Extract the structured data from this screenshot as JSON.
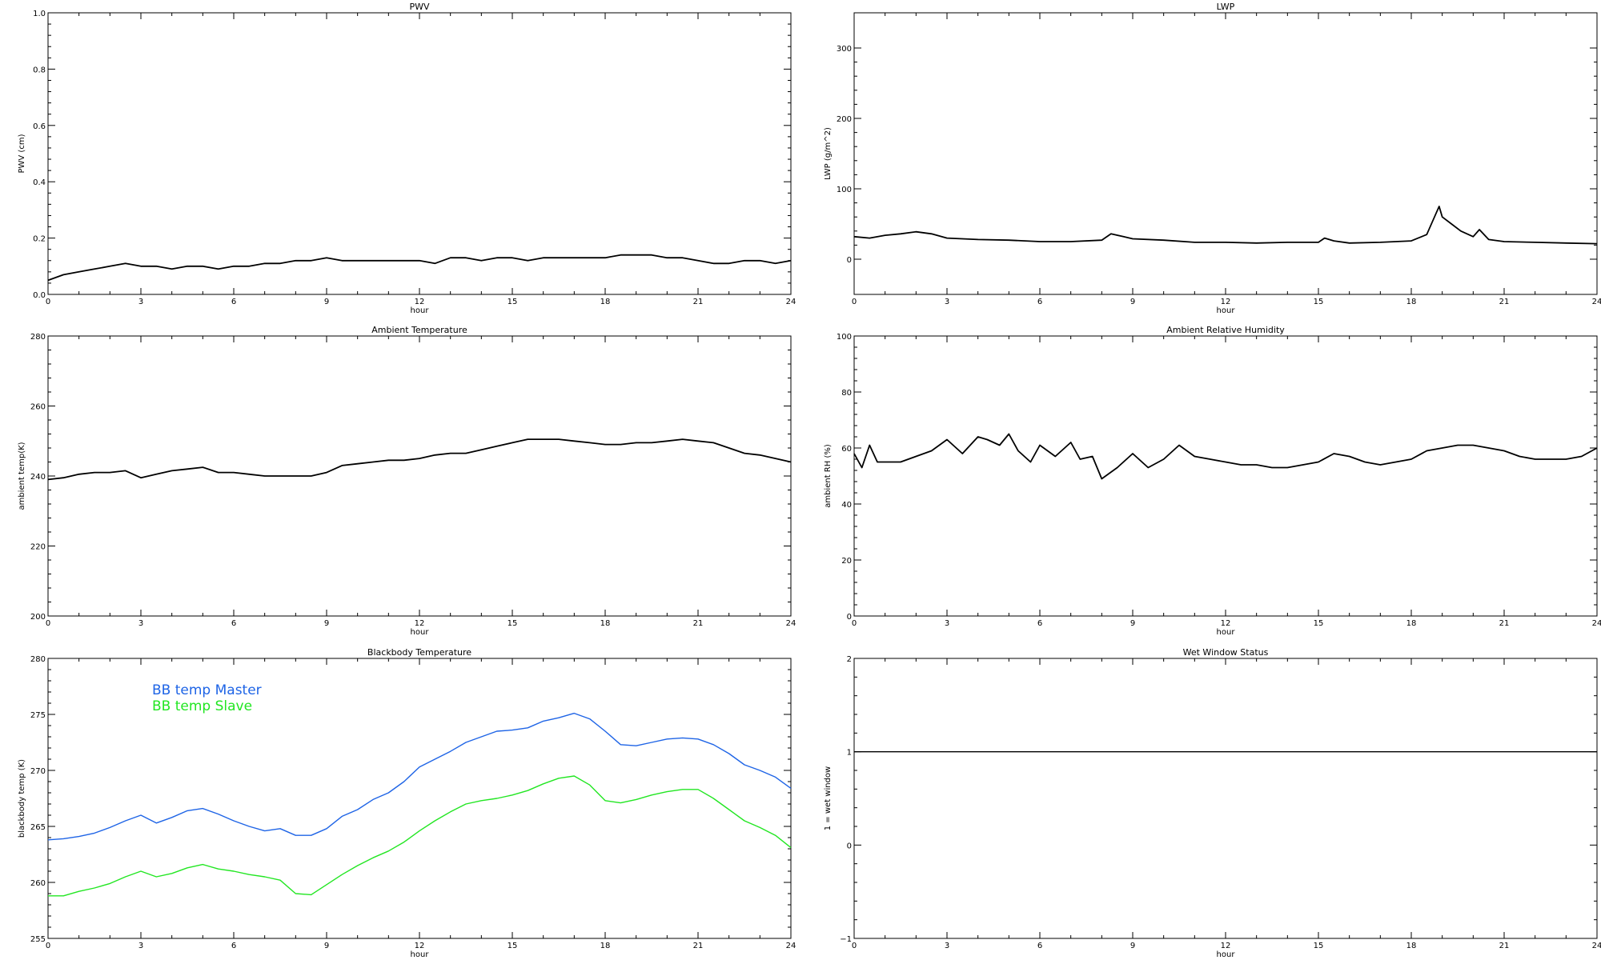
{
  "chart_data": [
    {
      "id": "pwv",
      "type": "line",
      "title": "PWV",
      "xlabel": "hour",
      "ylabel": "PWV (cm)",
      "xlim": [
        0,
        24
      ],
      "ylim": [
        0.0,
        1.0
      ],
      "xticks": [
        "0",
        "3",
        "6",
        "9",
        "12",
        "15",
        "18",
        "21",
        "24"
      ],
      "yticks": [
        "0.0",
        "0.2",
        "0.4",
        "0.6",
        "0.8",
        "1.0"
      ],
      "series": [
        {
          "color": "#000000",
          "x": [
            0,
            0.5,
            1,
            1.5,
            2,
            2.5,
            3,
            3.5,
            4,
            4.5,
            5,
            5.5,
            6,
            6.5,
            7,
            7.5,
            8,
            8.5,
            9,
            9.5,
            10,
            10.5,
            11,
            11.5,
            12,
            12.5,
            13,
            13.5,
            14,
            14.5,
            15,
            15.5,
            16,
            16.5,
            17,
            17.5,
            18,
            18.5,
            19,
            19.5,
            20,
            20.5,
            21,
            21.5,
            22,
            22.5,
            23,
            23.5,
            24
          ],
          "values": [
            0.05,
            0.07,
            0.08,
            0.09,
            0.1,
            0.11,
            0.1,
            0.1,
            0.09,
            0.1,
            0.1,
            0.09,
            0.1,
            0.1,
            0.11,
            0.11,
            0.12,
            0.12,
            0.13,
            0.12,
            0.12,
            0.12,
            0.12,
            0.12,
            0.12,
            0.11,
            0.13,
            0.13,
            0.12,
            0.13,
            0.13,
            0.12,
            0.13,
            0.13,
            0.13,
            0.13,
            0.13,
            0.14,
            0.14,
            0.14,
            0.13,
            0.13,
            0.12,
            0.11,
            0.11,
            0.12,
            0.12,
            0.11,
            0.12
          ]
        }
      ]
    },
    {
      "id": "lwp",
      "type": "line",
      "title": "LWP",
      "xlabel": "hour",
      "ylabel": "LWP (g/m^2)",
      "xlim": [
        0,
        24
      ],
      "ylim": [
        -50,
        350
      ],
      "xticks": [
        "0",
        "3",
        "6",
        "9",
        "12",
        "15",
        "18",
        "21",
        "24"
      ],
      "yticks": [
        "0",
        "100",
        "200",
        "300"
      ],
      "yticks_at": [
        0,
        100,
        200,
        300
      ],
      "series": [
        {
          "color": "#000000",
          "x": [
            0,
            0.5,
            1,
            1.5,
            2,
            2.5,
            3,
            4,
            5,
            6,
            7,
            8,
            8.3,
            8.7,
            9,
            10,
            11,
            12,
            13,
            14,
            15,
            15.2,
            15.5,
            16,
            17,
            18,
            18.5,
            18.8,
            18.9,
            19,
            19.3,
            19.6,
            20,
            20.2,
            20.5,
            21,
            22,
            23,
            24
          ],
          "values": [
            32,
            30,
            34,
            36,
            39,
            36,
            30,
            28,
            27,
            25,
            25,
            27,
            36,
            32,
            29,
            27,
            24,
            24,
            23,
            24,
            24,
            30,
            26,
            23,
            24,
            26,
            35,
            65,
            75,
            60,
            50,
            40,
            32,
            42,
            28,
            25,
            24,
            23,
            22
          ]
        }
      ]
    },
    {
      "id": "ambient-temp",
      "type": "line",
      "title": "Ambient Temperature",
      "xlabel": "hour",
      "ylabel": "ambient temp(K)",
      "xlim": [
        0,
        24
      ],
      "ylim": [
        200,
        280
      ],
      "xticks": [
        "0",
        "3",
        "6",
        "9",
        "12",
        "15",
        "18",
        "21",
        "24"
      ],
      "yticks": [
        "200",
        "220",
        "240",
        "260",
        "280"
      ],
      "series": [
        {
          "color": "#000000",
          "x": [
            0,
            0.5,
            1,
            1.5,
            2,
            2.5,
            3,
            3.5,
            4,
            4.5,
            5,
            5.5,
            6,
            6.5,
            7,
            7.5,
            8,
            8.5,
            9,
            9.5,
            10,
            10.5,
            11,
            11.5,
            12,
            12.5,
            13,
            13.5,
            14,
            14.5,
            15,
            15.5,
            16,
            16.5,
            17,
            17.5,
            18,
            18.5,
            19,
            19.5,
            20,
            20.5,
            21,
            21.5,
            22,
            22.5,
            23,
            23.5,
            24
          ],
          "values": [
            239,
            239.5,
            240.5,
            241,
            241,
            241.5,
            239.5,
            240.5,
            241.5,
            242,
            242.5,
            241,
            241,
            240.5,
            240,
            240,
            240,
            240,
            241,
            243,
            243.5,
            244,
            244.5,
            244.5,
            245,
            246,
            246.5,
            246.5,
            247.5,
            248.5,
            249.5,
            250.5,
            250.5,
            250.5,
            250,
            249.5,
            249,
            249,
            249.5,
            249.5,
            250,
            250.5,
            250,
            249.5,
            248,
            246.5,
            246,
            245,
            244
          ]
        }
      ]
    },
    {
      "id": "ambient-rh",
      "type": "line",
      "title": "Ambient Relative Humidity",
      "xlabel": "hour",
      "ylabel": "ambient RH (%)",
      "xlim": [
        0,
        24
      ],
      "ylim": [
        0,
        100
      ],
      "xticks": [
        "0",
        "3",
        "6",
        "9",
        "12",
        "15",
        "18",
        "21",
        "24"
      ],
      "yticks": [
        "0",
        "20",
        "40",
        "60",
        "80",
        "100"
      ],
      "series": [
        {
          "color": "#000000",
          "x": [
            0,
            0.25,
            0.5,
            0.75,
            1,
            1.5,
            2,
            2.5,
            3,
            3.5,
            4,
            4.3,
            4.7,
            5,
            5.3,
            5.7,
            6,
            6.5,
            7,
            7.3,
            7.7,
            8,
            8.5,
            9,
            9.5,
            10,
            10.5,
            11,
            11.5,
            12,
            12.5,
            13,
            13.5,
            14,
            14.5,
            15,
            15.5,
            16,
            16.5,
            17,
            17.5,
            18,
            18.5,
            19,
            19.5,
            20,
            20.5,
            21,
            21.5,
            22,
            22.5,
            23,
            23.5,
            24
          ],
          "values": [
            58,
            53,
            61,
            55,
            55,
            55,
            57,
            59,
            63,
            58,
            64,
            63,
            61,
            65,
            59,
            55,
            61,
            57,
            62,
            56,
            57,
            49,
            53,
            58,
            53,
            56,
            61,
            57,
            56,
            55,
            54,
            54,
            53,
            53,
            54,
            55,
            58,
            57,
            55,
            54,
            55,
            56,
            59,
            60,
            61,
            61,
            60,
            59,
            57,
            56,
            56,
            56,
            57,
            60
          ]
        }
      ]
    },
    {
      "id": "blackbody-temp",
      "type": "line",
      "title": "Blackbody Temperature",
      "xlabel": "hour",
      "ylabel": "blackbody temp (K)",
      "xlim": [
        0,
        24
      ],
      "ylim": [
        255,
        280
      ],
      "legend_position": "top-left",
      "xticks": [
        "0",
        "3",
        "6",
        "9",
        "12",
        "15",
        "18",
        "21",
        "24"
      ],
      "yticks": [
        "255",
        "260",
        "265",
        "270",
        "275",
        "280"
      ],
      "series": [
        {
          "name": "BB temp Master",
          "color": "#1e64e6",
          "x": [
            0,
            0.5,
            1,
            1.5,
            2,
            2.5,
            3,
            3.5,
            4,
            4.5,
            5,
            5.5,
            6,
            6.5,
            7,
            7.5,
            8,
            8.5,
            9,
            9.5,
            10,
            10.5,
            11,
            11.5,
            12,
            12.5,
            13,
            13.5,
            14,
            14.5,
            15,
            15.5,
            16,
            16.5,
            17,
            17.5,
            18,
            18.5,
            19,
            19.5,
            20,
            20.5,
            21,
            21.5,
            22,
            22.5,
            23,
            23.5,
            24
          ],
          "values": [
            263.8,
            263.9,
            264.1,
            264.4,
            264.9,
            265.5,
            266.0,
            265.3,
            265.8,
            266.4,
            266.6,
            266.1,
            265.5,
            265.0,
            264.6,
            264.8,
            264.2,
            264.2,
            264.8,
            265.9,
            266.5,
            267.4,
            268.0,
            269.0,
            270.3,
            271.0,
            271.7,
            272.5,
            273.0,
            273.5,
            273.6,
            273.8,
            274.4,
            274.7,
            275.1,
            274.6,
            273.5,
            272.3,
            272.2,
            272.5,
            272.8,
            272.9,
            272.8,
            272.3,
            271.5,
            270.5,
            270.0,
            269.4,
            268.4
          ]
        },
        {
          "name": "BB temp Slave",
          "color": "#22e622",
          "x": [
            0,
            0.5,
            1,
            1.5,
            2,
            2.5,
            3,
            3.5,
            4,
            4.5,
            5,
            5.5,
            6,
            6.5,
            7,
            7.5,
            8,
            8.5,
            9,
            9.5,
            10,
            10.5,
            11,
            11.5,
            12,
            12.5,
            13,
            13.5,
            14,
            14.5,
            15,
            15.5,
            16,
            16.5,
            17,
            17.5,
            18,
            18.5,
            19,
            19.5,
            20,
            20.5,
            21,
            21.5,
            22,
            22.5,
            23,
            23.5,
            24
          ],
          "values": [
            258.8,
            258.8,
            259.2,
            259.5,
            259.9,
            260.5,
            261.0,
            260.5,
            260.8,
            261.3,
            261.6,
            261.2,
            261.0,
            260.7,
            260.5,
            260.2,
            259.0,
            258.9,
            259.8,
            260.7,
            261.5,
            262.2,
            262.8,
            263.6,
            264.6,
            265.5,
            266.3,
            267.0,
            267.3,
            267.5,
            267.8,
            268.2,
            268.8,
            269.3,
            269.5,
            268.7,
            267.3,
            267.1,
            267.4,
            267.8,
            268.1,
            268.3,
            268.3,
            267.5,
            266.5,
            265.5,
            264.9,
            264.2,
            263.1
          ]
        }
      ]
    },
    {
      "id": "wet-window",
      "type": "line",
      "title": "Wet Window Status",
      "xlabel": "hour",
      "ylabel": "1 = wet window",
      "xlim": [
        0,
        24
      ],
      "ylim": [
        -1,
        2
      ],
      "xticks": [
        "0",
        "3",
        "6",
        "9",
        "12",
        "15",
        "18",
        "21",
        "24"
      ],
      "yticks": [
        "−1",
        "0",
        "1",
        "2"
      ],
      "yticks_at": [
        -1,
        0,
        1,
        2
      ],
      "series": [
        {
          "color": "#000000",
          "x": [
            0,
            24
          ],
          "values": [
            1,
            1
          ]
        }
      ]
    }
  ]
}
